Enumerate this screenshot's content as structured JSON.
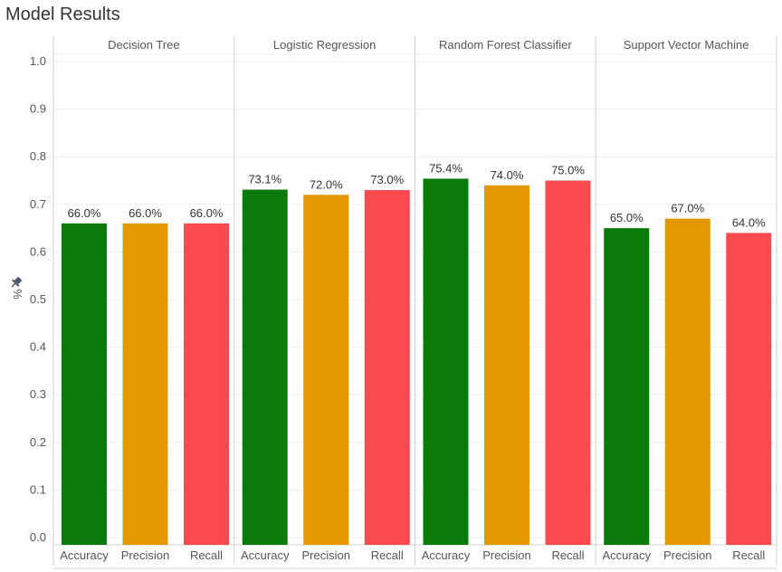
{
  "title": "Model Results",
  "colors": {
    "Accuracy": "#0a7a0a",
    "Precision": "#e39800",
    "Recall": "#f94b4f",
    "grid": "#efefef",
    "divider": "#d3d3d3",
    "text": "#555555",
    "label": "#333333",
    "axis_icon": "#4a5a6e"
  },
  "chart_data": {
    "type": "bar",
    "ylabel": "%",
    "ylim": [
      0,
      1.0
    ],
    "yticks": [
      "0.0",
      "0.1",
      "0.2",
      "0.3",
      "0.4",
      "0.5",
      "0.6",
      "0.7",
      "0.8",
      "0.9",
      "1.0"
    ],
    "categories": [
      "Accuracy",
      "Precision",
      "Recall"
    ],
    "groups": [
      {
        "name": "Decision Tree",
        "values": [
          0.66,
          0.66,
          0.66
        ],
        "labels": [
          "66.0%",
          "66.0%",
          "66.0%"
        ]
      },
      {
        "name": "Logistic Regression",
        "values": [
          0.731,
          0.72,
          0.73
        ],
        "labels": [
          "73.1%",
          "72.0%",
          "73.0%"
        ]
      },
      {
        "name": "Random Forest Classifier",
        "values": [
          0.754,
          0.74,
          0.75
        ],
        "labels": [
          "75.4%",
          "74.0%",
          "75.0%"
        ]
      },
      {
        "name": "Support Vector Machine",
        "values": [
          0.65,
          0.67,
          0.64
        ],
        "labels": [
          "65.0%",
          "67.0%",
          "64.0%"
        ]
      }
    ]
  }
}
